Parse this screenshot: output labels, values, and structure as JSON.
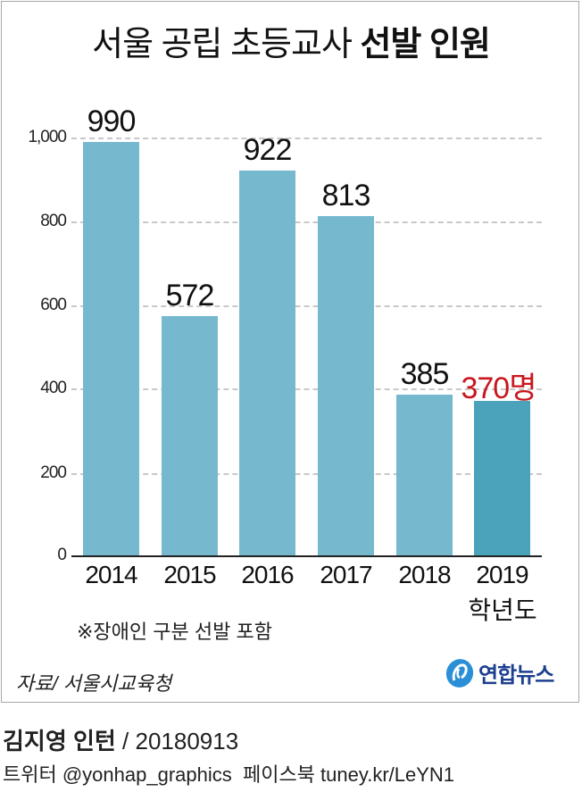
{
  "title": {
    "light": "서울 공립 초등교사",
    "bold": "선발 인원"
  },
  "chart_data": {
    "type": "bar",
    "title": "서울 공립 초등교사 선발 인원",
    "categories": [
      "2014",
      "2015",
      "2016",
      "2017",
      "2018",
      "2019"
    ],
    "values": [
      990,
      572,
      922,
      813,
      385,
      370
    ],
    "value_labels": [
      "990",
      "572",
      "922",
      "813",
      "385",
      "370명"
    ],
    "highlight_index": 5,
    "xlabel": "학년도",
    "ylabel": "",
    "yticks": [
      "1,000",
      "800",
      "600",
      "400",
      "200",
      "0"
    ],
    "ylim": [
      0,
      1000
    ],
    "grid": true,
    "colors": {
      "bar": "#76b9cf",
      "highlight_bar": "#4aa3ba",
      "highlight_label": "#c8171d"
    }
  },
  "note": "※장애인 구분 선발 포함",
  "source": "자료/ 서울시교육청",
  "logo": {
    "icon": "yonhap-globe-icon",
    "text": "연합뉴스"
  },
  "credit": {
    "name": "김지영 인턴",
    "date": " / 20180913"
  },
  "social": "트위터 @yonhap_graphics  페이스북 tuney.kr/LeYN1"
}
